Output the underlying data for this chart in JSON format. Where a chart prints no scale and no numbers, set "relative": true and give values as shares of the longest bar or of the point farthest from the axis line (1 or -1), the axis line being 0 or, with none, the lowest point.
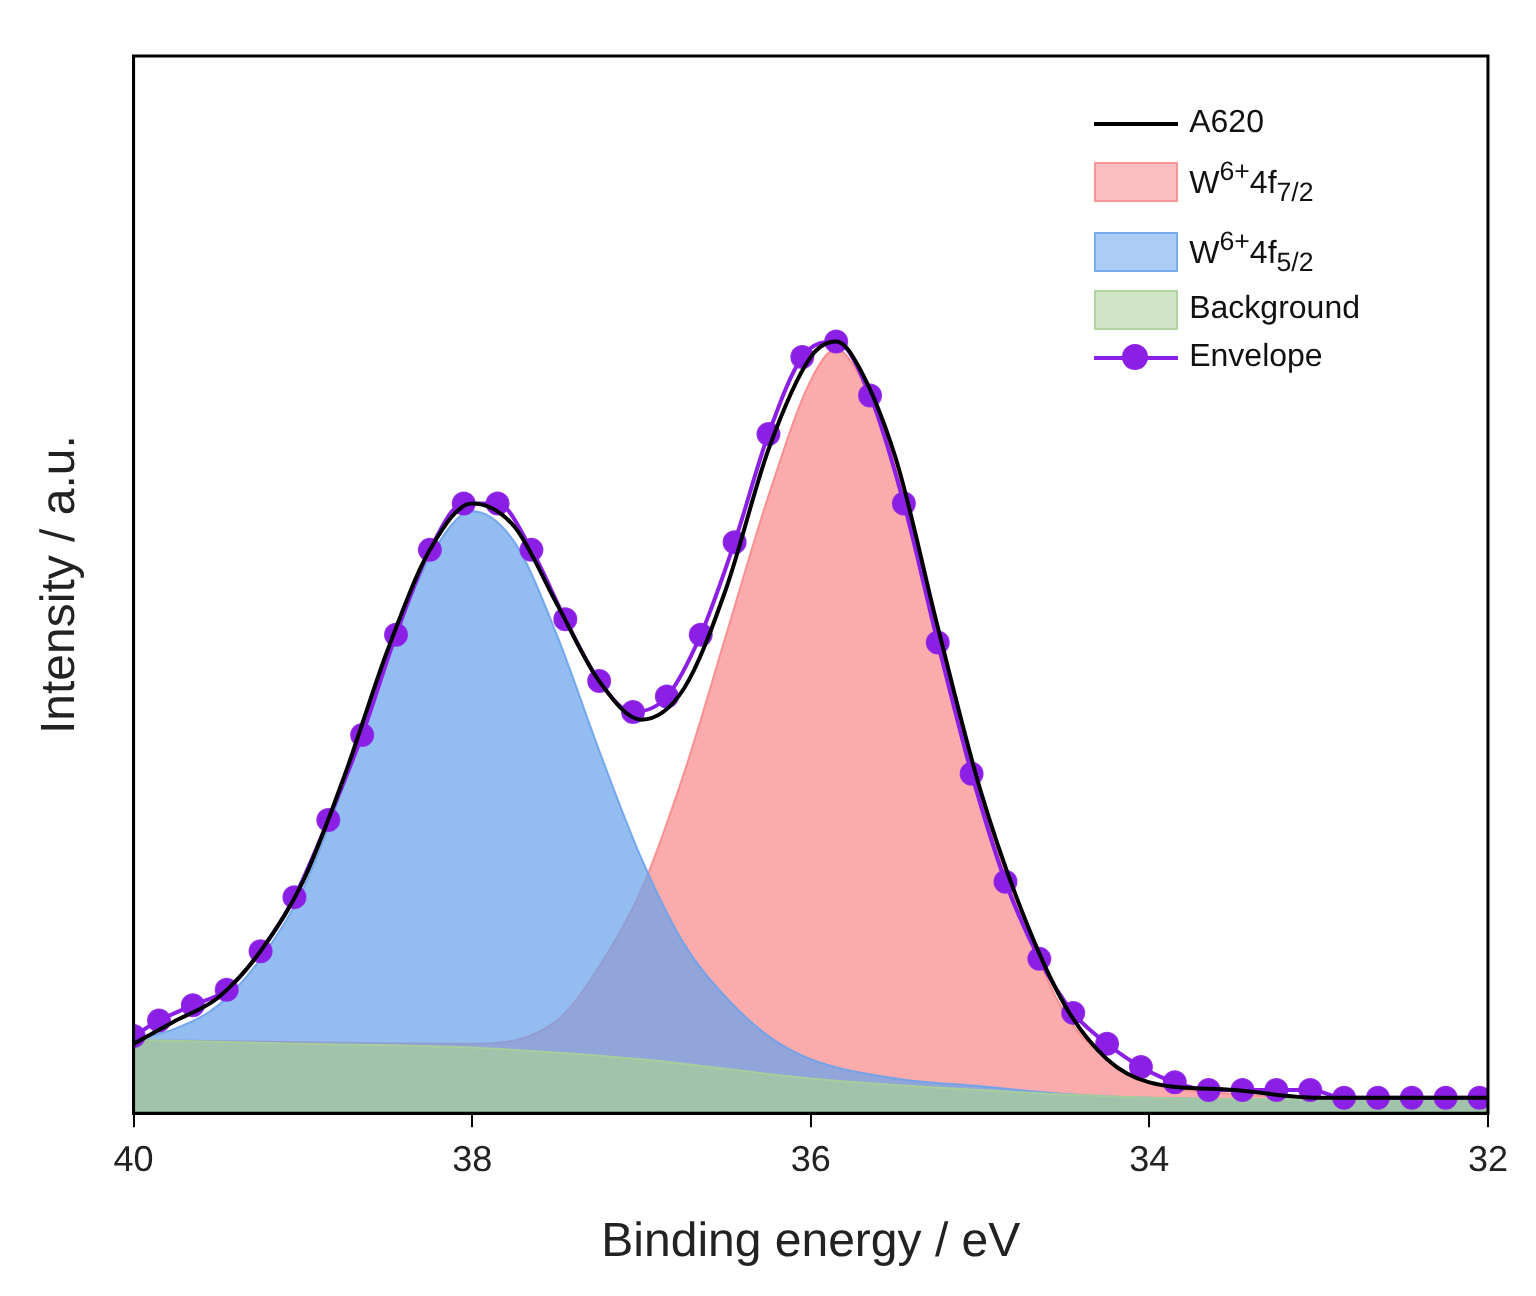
{
  "chart_data": {
    "type": "line",
    "xlabel": "Binding energy / eV",
    "ylabel": "Intensity / a.u.",
    "relative": true,
    "xlim": [
      40,
      32
    ],
    "xticks": [
      40,
      38,
      36,
      34,
      32
    ],
    "legend": "top right",
    "series": [
      {
        "name": "A620",
        "type": "line",
        "color": "#000000",
        "marker": "none",
        "x": [
          40,
          39.75,
          39.5,
          39.25,
          39,
          38.75,
          38.5,
          38.25,
          38,
          37.75,
          37.5,
          37.25,
          37,
          36.75,
          36.5,
          36.25,
          36,
          35.85,
          35.75,
          35.5,
          35.25,
          35,
          34.75,
          34.5,
          34.25,
          34,
          33.5,
          33,
          32.5,
          32
        ],
        "values": [
          0.09,
          0.12,
          0.15,
          0.21,
          0.3,
          0.44,
          0.6,
          0.73,
          0.79,
          0.76,
          0.66,
          0.56,
          0.51,
          0.55,
          0.68,
          0.86,
          0.98,
          1.0,
          0.98,
          0.85,
          0.63,
          0.42,
          0.26,
          0.14,
          0.07,
          0.04,
          0.03,
          0.02,
          0.02,
          0.02
        ]
      },
      {
        "name": "W$^{6+}$4f$_{7/2}$",
        "type": "area",
        "color": "#fa8a8a",
        "x": [
          40,
          38,
          37.5,
          37.25,
          37,
          36.75,
          36.5,
          36.25,
          36,
          35.85,
          35.75,
          35.5,
          35.25,
          35,
          34.75,
          34.5,
          34.25,
          34,
          33.5,
          33,
          32
        ],
        "values": [
          0.095,
          0.09,
          0.12,
          0.19,
          0.29,
          0.44,
          0.62,
          0.8,
          0.95,
          0.99,
          0.97,
          0.84,
          0.62,
          0.41,
          0.25,
          0.13,
          0.07,
          0.04,
          0.025,
          0.02,
          0.018
        ]
      },
      {
        "name": "W$^{6+}$4f$_{5/2}$",
        "type": "area",
        "color": "#6aa2ec",
        "x": [
          40,
          39.75,
          39.5,
          39.25,
          39,
          38.75,
          38.5,
          38.25,
          38,
          37.75,
          37.5,
          37.25,
          37,
          36.75,
          36.5,
          36.25,
          36,
          35.5,
          35,
          34.5,
          34,
          33,
          32
        ],
        "values": [
          0.095,
          0.11,
          0.14,
          0.2,
          0.29,
          0.43,
          0.59,
          0.72,
          0.78,
          0.74,
          0.62,
          0.47,
          0.33,
          0.22,
          0.15,
          0.1,
          0.07,
          0.045,
          0.035,
          0.025,
          0.02,
          0.018,
          0.018
        ]
      },
      {
        "name": "Background",
        "type": "area",
        "color": "#a8cf98",
        "x": [
          40,
          39,
          38,
          37,
          36,
          35,
          34,
          33,
          32
        ],
        "values": [
          0.095,
          0.09,
          0.085,
          0.07,
          0.045,
          0.03,
          0.02,
          0.018,
          0.018
        ]
      },
      {
        "name": "Envelope",
        "type": "line",
        "color": "#8b1fe6",
        "marker": "circle",
        "x": [
          40,
          39.85,
          39.65,
          39.45,
          39.25,
          39.05,
          38.85,
          38.65,
          38.45,
          38.25,
          38.05,
          37.85,
          37.65,
          37.45,
          37.25,
          37.05,
          36.85,
          36.65,
          36.45,
          36.25,
          36.05,
          35.85,
          35.65,
          35.45,
          35.25,
          35.05,
          34.85,
          34.65,
          34.45,
          34.25,
          34.05,
          33.85,
          33.65,
          33.45,
          33.25,
          33.05,
          32.85,
          32.65,
          32.45,
          32.25,
          32.05
        ],
        "values": [
          0.1,
          0.12,
          0.14,
          0.16,
          0.21,
          0.28,
          0.38,
          0.49,
          0.62,
          0.73,
          0.79,
          0.79,
          0.73,
          0.64,
          0.56,
          0.52,
          0.54,
          0.62,
          0.74,
          0.88,
          0.98,
          1.0,
          0.93,
          0.79,
          0.61,
          0.44,
          0.3,
          0.2,
          0.13,
          0.09,
          0.06,
          0.04,
          0.03,
          0.03,
          0.03,
          0.03,
          0.02,
          0.02,
          0.02,
          0.02,
          0.02
        ]
      }
    ]
  }
}
